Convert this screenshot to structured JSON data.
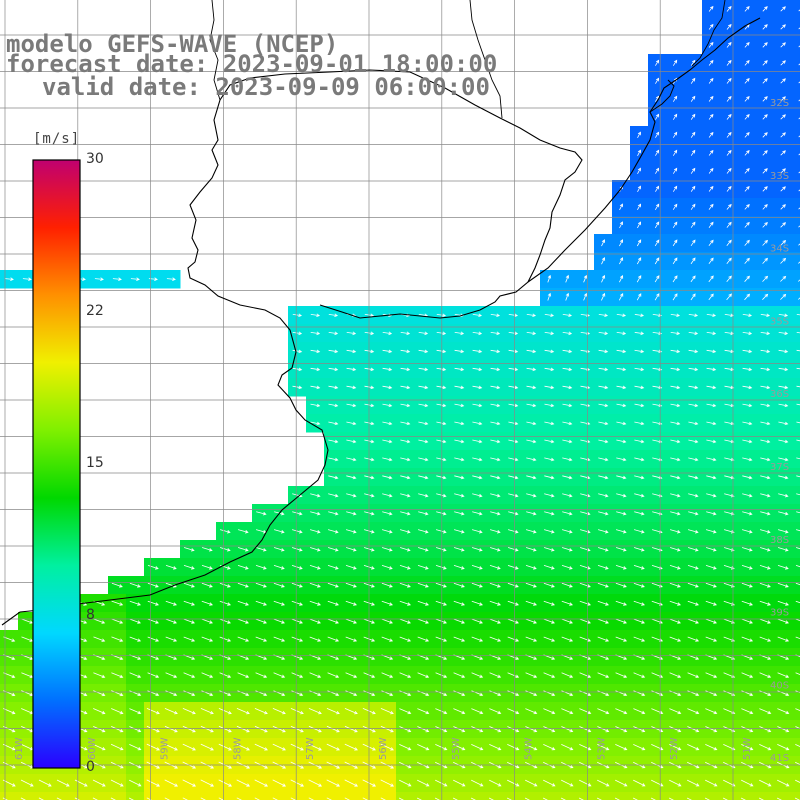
{
  "header": {
    "model": "modelo GEFS-WAVE (NCEP)",
    "forecast": "forecast date: 2023-09-01 18:00:00",
    "valid": "valid date: 2023-09-09 06:00:00"
  },
  "colorbar": {
    "unit": "[m/s]",
    "ticks": [
      "30",
      "22",
      "15",
      "8",
      "0"
    ],
    "stops": [
      "#2a00ff",
      "#0070ff",
      "#00d8ff",
      "#00f0a0",
      "#00d800",
      "#80f000",
      "#f0f000",
      "#ff9000",
      "#ff2000",
      "#c00070"
    ]
  },
  "map": {
    "lat_labels": [
      "32S",
      "33S",
      "34S",
      "35S",
      "36S",
      "37S",
      "38S",
      "39S",
      "40S",
      "41S"
    ],
    "lon_labels": [
      "61W",
      "60W",
      "59W",
      "58W",
      "57W",
      "56W",
      "55W",
      "54W",
      "53W",
      "52W",
      "51W"
    ],
    "arrow_color": "#ffffff",
    "grid_color": "#888888",
    "coast_color": "#000000"
  }
}
